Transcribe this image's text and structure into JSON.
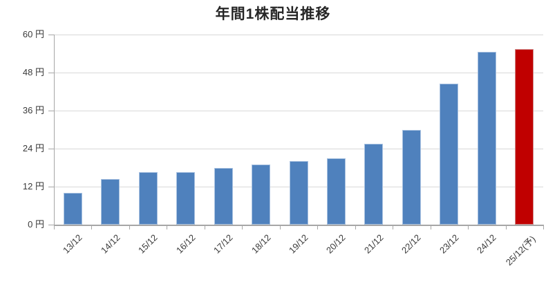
{
  "chart_data": {
    "type": "bar",
    "title": "年間1株配当推移",
    "categories": [
      "13/12",
      "14/12",
      "15/12",
      "16/12",
      "17/12",
      "18/12",
      "19/12",
      "20/12",
      "21/12",
      "22/12",
      "23/12",
      "24/12",
      "25/12(予)"
    ],
    "values": [
      10,
      14.5,
      16.5,
      16.5,
      18,
      19,
      20,
      21,
      25.5,
      30,
      44.5,
      54.5,
      55.5
    ],
    "unit": "円",
    "xlabel": "",
    "ylabel": "",
    "ylim": [
      0,
      60
    ],
    "y_ticks": [
      0,
      12,
      24,
      36,
      48,
      60
    ],
    "y_tick_labels": [
      "0 円",
      "12 円",
      "24 円",
      "36 円",
      "48 円",
      "60 円"
    ],
    "grid": true,
    "legend": false,
    "forecast_index": 12,
    "colors": {
      "actual": "#4F81BD",
      "forecast": "#C00000",
      "gridline": "#d8d8d8",
      "axis": "#a6a6a6",
      "text": "#3a3a3a",
      "title_text": "#262626"
    }
  }
}
